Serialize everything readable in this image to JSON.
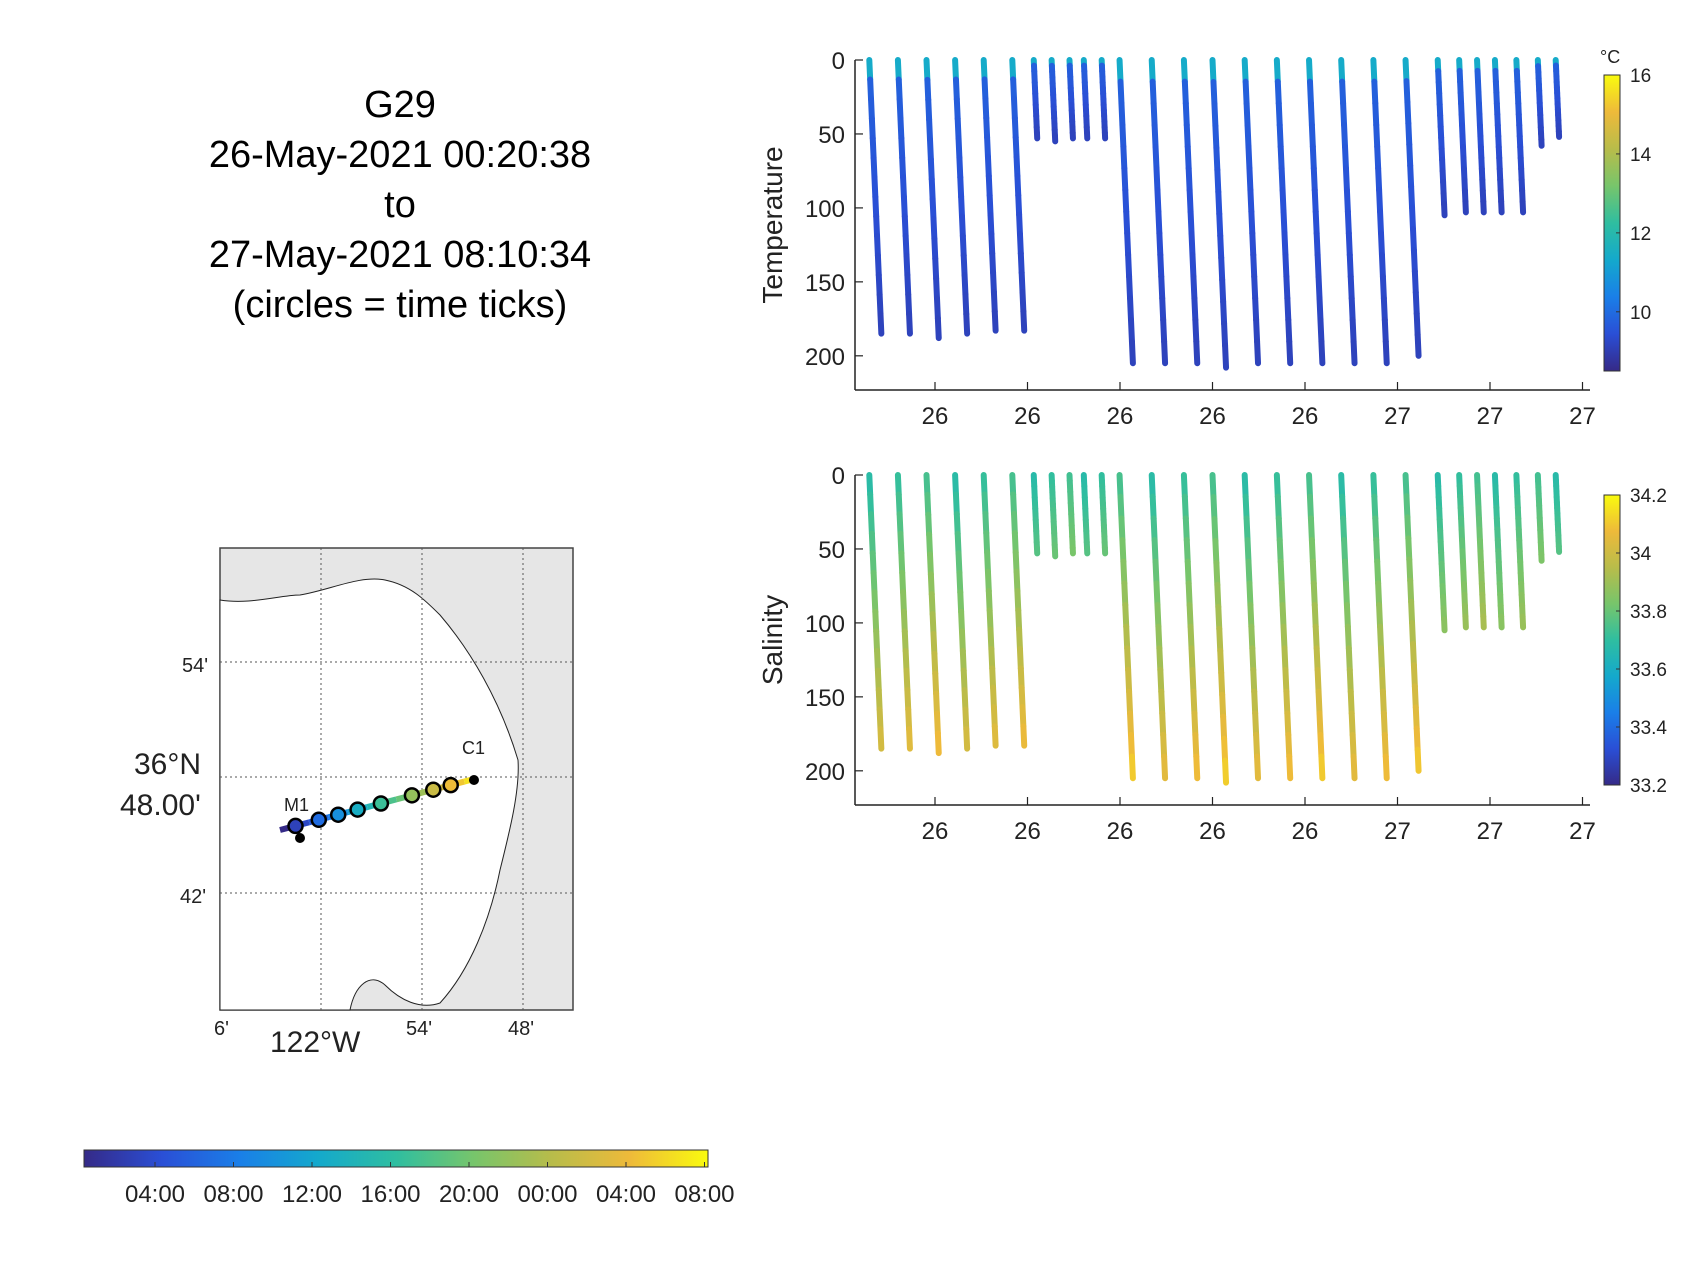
{
  "header": {
    "lines": [
      "G29",
      "26-May-2021 00:20:38",
      "to",
      "27-May-2021 08:10:34",
      "(circles = time ticks)"
    ]
  },
  "colors": {
    "parula": [
      "#352a87",
      "#2a4fd6",
      "#1a7fe8",
      "#14a9cc",
      "#2fbea0",
      "#77c56b",
      "#b8bc4a",
      "#eeba3a",
      "#f9fb0e"
    ]
  },
  "chart_data": [
    {
      "type": "scatter",
      "name": "temperature_sections",
      "ylabel": "Temperature",
      "y_reversed": true,
      "ylim": [
        0,
        215
      ],
      "yticks": [
        0,
        50,
        100,
        150,
        200
      ],
      "xtick_labels": [
        "26",
        "26",
        "26",
        "26",
        "26",
        "27",
        "27",
        "27"
      ],
      "colorbar": {
        "unit": "°C",
        "ticks": [
          10,
          12,
          14,
          16
        ],
        "range": [
          8.5,
          16
        ]
      },
      "surface_value": 11.0,
      "deep_value": 8.8,
      "note_profiles": "fractional positions along the x-axis, depth reached (m)"
    },
    {
      "type": "scatter",
      "name": "salinity_sections",
      "ylabel": "Salinity",
      "y_reversed": true,
      "ylim": [
        0,
        215
      ],
      "yticks": [
        0,
        50,
        100,
        150,
        200
      ],
      "xtick_labels": [
        "26",
        "26",
        "26",
        "26",
        "26",
        "27",
        "27",
        "27"
      ],
      "colorbar": {
        "unit": "",
        "ticks": [
          33.2,
          33.4,
          33.6,
          33.8,
          34,
          34.2
        ],
        "range": [
          33.2,
          34.2
        ]
      }
    },
    {
      "type": "scatter",
      "name": "glider_track_map",
      "lat_labels": [
        "54'",
        "36°N",
        "48.00'",
        "42'"
      ],
      "lon_labels": [
        "6'",
        "122°W",
        "54'",
        "48'"
      ],
      "stations": [
        "M1",
        "C1"
      ]
    }
  ],
  "profiles": {
    "temperature": [
      {
        "t": 0.02,
        "d": 185
      },
      {
        "t": 0.06,
        "d": 185
      },
      {
        "t": 0.1,
        "d": 188
      },
      {
        "t": 0.14,
        "d": 185
      },
      {
        "t": 0.18,
        "d": 183
      },
      {
        "t": 0.22,
        "d": 183
      },
      {
        "t": 0.25,
        "d": 53
      },
      {
        "t": 0.275,
        "d": 55
      },
      {
        "t": 0.3,
        "d": 53
      },
      {
        "t": 0.32,
        "d": 53
      },
      {
        "t": 0.345,
        "d": 53
      },
      {
        "t": 0.37,
        "d": 205
      },
      {
        "t": 0.415,
        "d": 205
      },
      {
        "t": 0.46,
        "d": 205
      },
      {
        "t": 0.5,
        "d": 208
      },
      {
        "t": 0.545,
        "d": 205
      },
      {
        "t": 0.59,
        "d": 205
      },
      {
        "t": 0.635,
        "d": 205
      },
      {
        "t": 0.68,
        "d": 205
      },
      {
        "t": 0.725,
        "d": 205
      },
      {
        "t": 0.77,
        "d": 200
      },
      {
        "t": 0.815,
        "d": 105
      },
      {
        "t": 0.845,
        "d": 103
      },
      {
        "t": 0.87,
        "d": 103
      },
      {
        "t": 0.895,
        "d": 103
      },
      {
        "t": 0.925,
        "d": 103
      },
      {
        "t": 0.955,
        "d": 58
      },
      {
        "t": 0.98,
        "d": 52
      }
    ]
  },
  "colorbar_time": {
    "labels": [
      "04:00",
      "08:00",
      "12:00",
      "16:00",
      "20:00",
      "00:00",
      "04:00",
      "08:00"
    ]
  }
}
